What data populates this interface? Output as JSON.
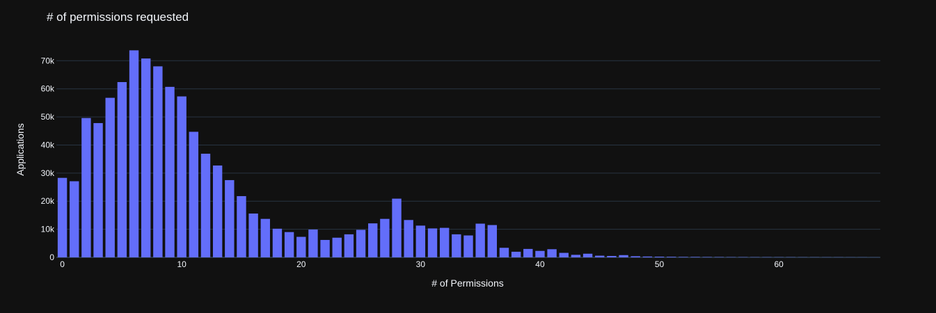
{
  "chart_data": {
    "type": "bar",
    "title": "# of permissions requested",
    "xlabel": "# of Permissions",
    "ylabel": "Applications",
    "xlim": [
      -0.5,
      68.5
    ],
    "ylim": [
      0,
      78000
    ],
    "x_ticks": [
      0,
      10,
      20,
      30,
      40,
      50,
      60
    ],
    "x_tick_labels": [
      "0",
      "10",
      "20",
      "30",
      "40",
      "50",
      "60"
    ],
    "y_ticks": [
      0,
      10000,
      20000,
      30000,
      40000,
      50000,
      60000,
      70000
    ],
    "y_tick_labels": [
      "0",
      "10k",
      "20k",
      "30k",
      "40k",
      "50k",
      "60k",
      "70k"
    ],
    "grid": true,
    "colors": {
      "bar": "#636efa",
      "background": "#111111",
      "grid": "#283442",
      "text": "#f2f5fa"
    },
    "x": [
      0,
      1,
      2,
      3,
      4,
      5,
      6,
      7,
      8,
      9,
      10,
      11,
      12,
      13,
      14,
      15,
      16,
      17,
      18,
      19,
      20,
      21,
      22,
      23,
      24,
      25,
      26,
      27,
      28,
      29,
      30,
      31,
      32,
      33,
      34,
      35,
      36,
      37,
      38,
      39,
      40,
      41,
      42,
      43,
      44,
      45,
      46,
      47,
      48,
      49,
      50,
      51,
      52,
      53,
      54,
      55,
      56,
      57,
      58,
      59,
      60,
      61,
      62,
      63,
      64,
      65,
      66,
      67,
      68
    ],
    "values": [
      28300,
      27100,
      49600,
      47800,
      56800,
      62400,
      73700,
      70800,
      68000,
      60700,
      57300,
      44700,
      36900,
      32700,
      27500,
      21800,
      15600,
      13700,
      10200,
      9000,
      7300,
      9900,
      6200,
      7000,
      8200,
      9800,
      12100,
      13700,
      20900,
      13300,
      11300,
      10300,
      10500,
      8200,
      7800,
      12000,
      11500,
      3400,
      2000,
      3000,
      2300,
      2900,
      1600,
      900,
      1300,
      600,
      500,
      800,
      400,
      300,
      250,
      200,
      150,
      150,
      120,
      100,
      80,
      80,
      70,
      70,
      60,
      60,
      50,
      50,
      40,
      40,
      30,
      30,
      20
    ]
  }
}
